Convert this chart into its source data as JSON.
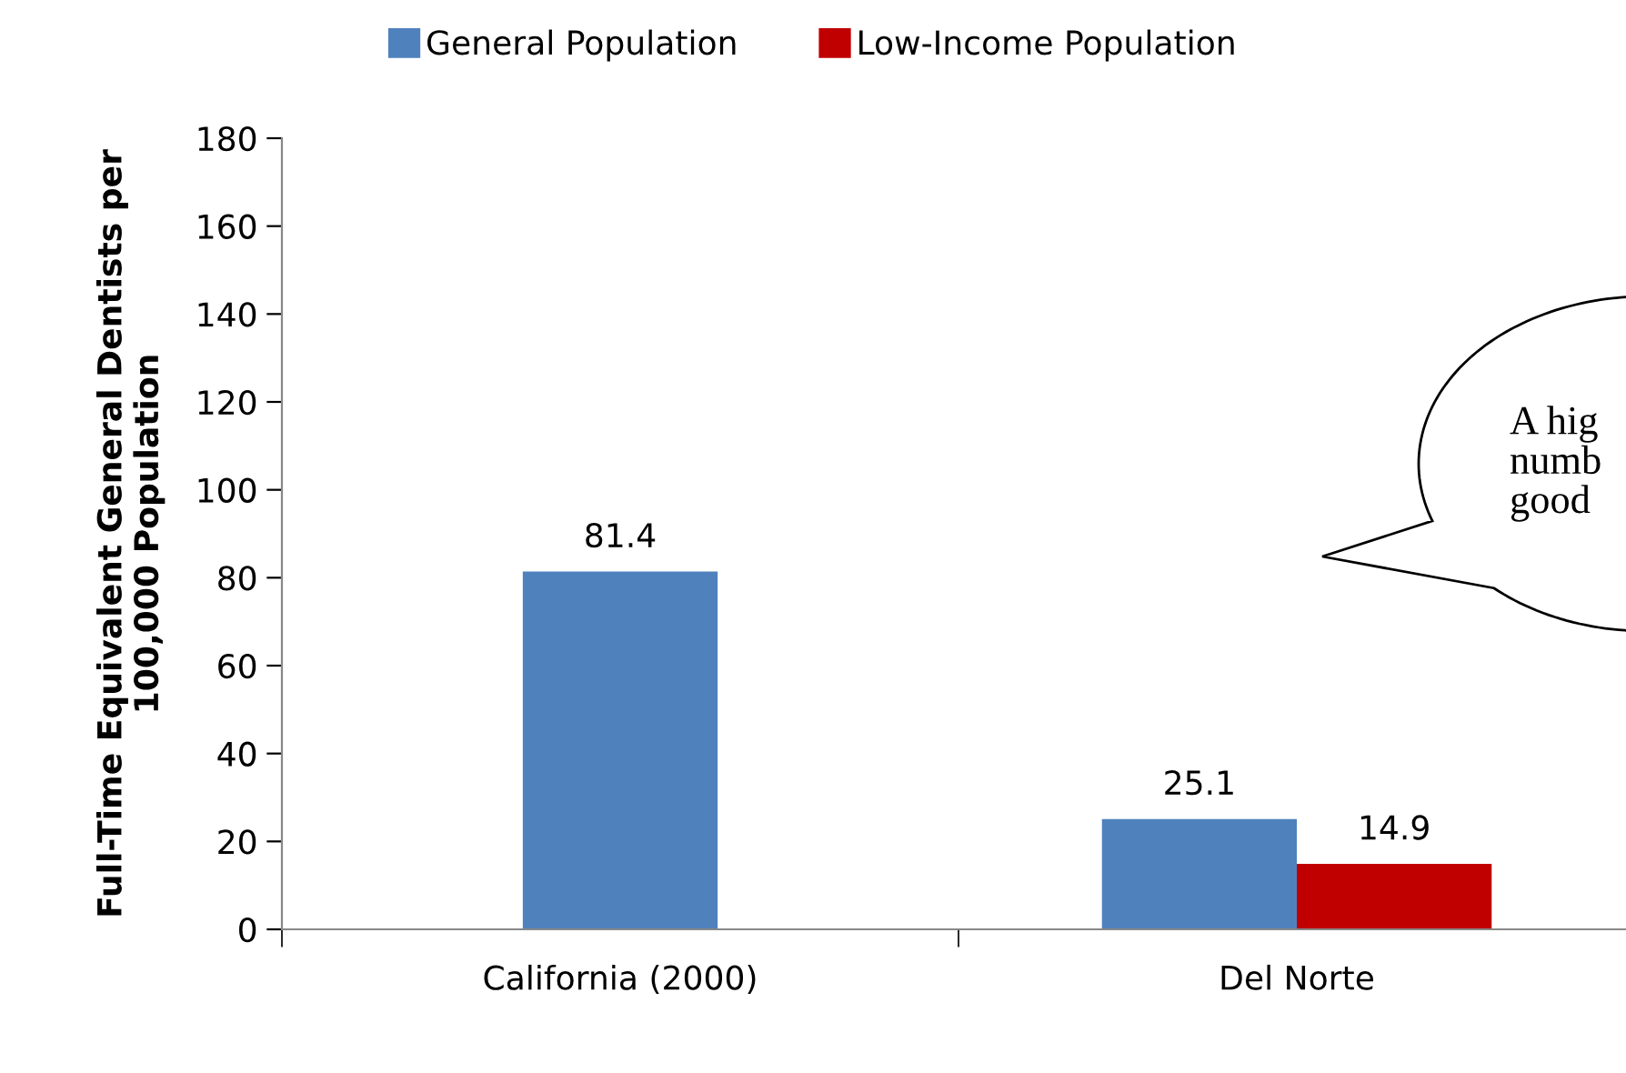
{
  "chart_data": {
    "type": "bar",
    "categories": [
      "California (2000)",
      "Del Norte"
    ],
    "series": [
      {
        "name": "General Population",
        "color": "#4f81bd",
        "values": [
          81.4,
          25.1
        ]
      },
      {
        "name": "Low-Income Population",
        "color": "#c00000",
        "values": [
          null,
          14.9
        ]
      }
    ],
    "ylabel": "Full-Time Equivalent General Dentists per\n100,000 Population",
    "ylim": [
      0,
      180
    ],
    "yticks": [
      0,
      20,
      40,
      60,
      80,
      100,
      120,
      140,
      160,
      180
    ],
    "data_labels": true,
    "legend": "top",
    "grid": false,
    "annotations": [
      "A hig\nnumb\ngood"
    ]
  }
}
